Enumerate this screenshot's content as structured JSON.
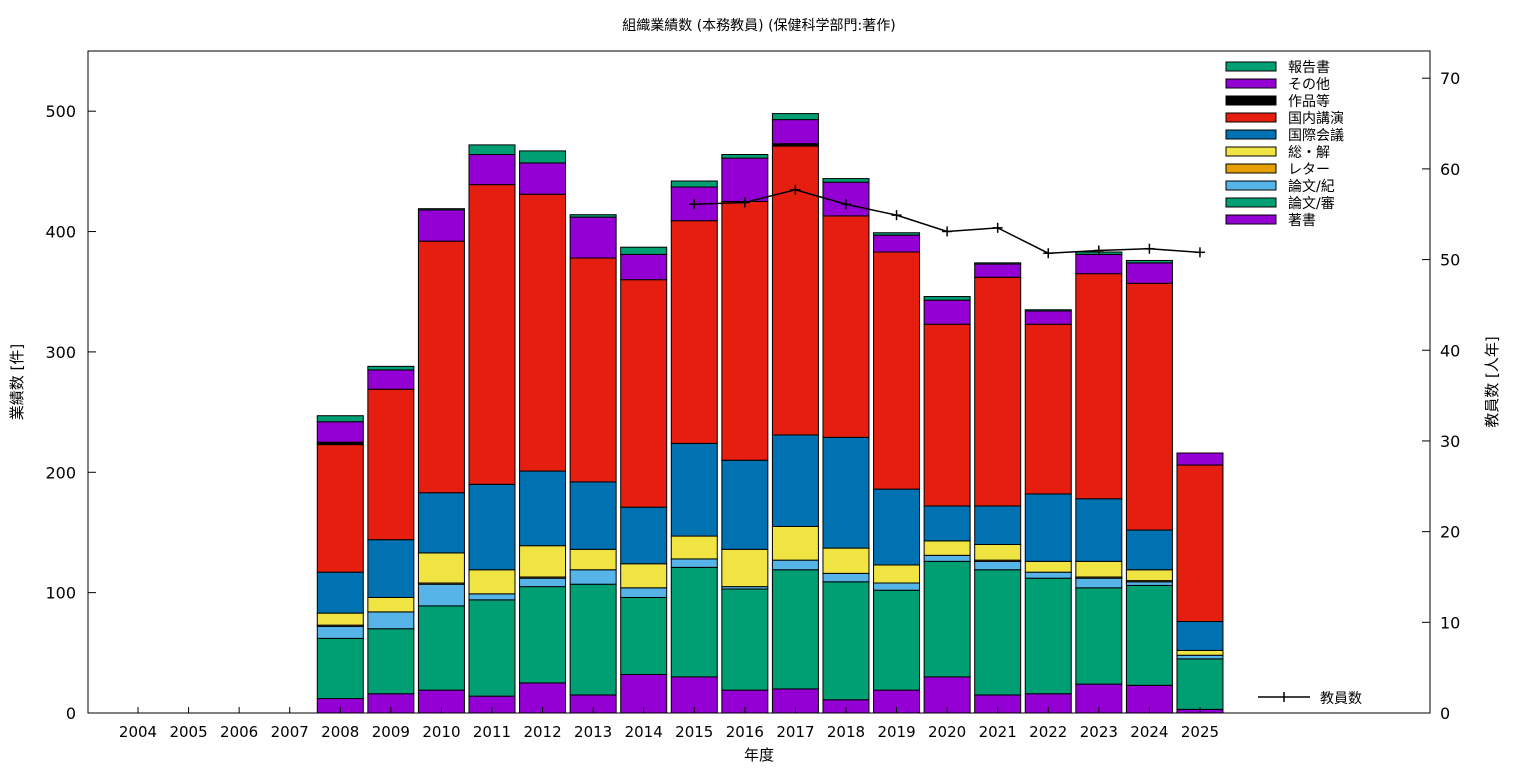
{
  "chart_data": {
    "type": "bar",
    "stacked": true,
    "title": "組織業績数 (本務教員) (保健科学部門:著作)",
    "xlabel": "年度",
    "ylabel": "業績数 [件]",
    "y2label": "教員数 [人年]",
    "ylim": [
      0,
      550
    ],
    "y2lim": [
      0,
      73
    ],
    "yticks": [
      0,
      100,
      200,
      300,
      400,
      500
    ],
    "y2ticks": [
      0,
      10,
      20,
      30,
      40,
      50,
      60,
      70
    ],
    "categories": [
      "2004",
      "2005",
      "2006",
      "2007",
      "2008",
      "2009",
      "2010",
      "2011",
      "2012",
      "2013",
      "2014",
      "2015",
      "2016",
      "2017",
      "2018",
      "2019",
      "2020",
      "2021",
      "2022",
      "2023",
      "2024",
      "2025"
    ],
    "legend_position": "top-right",
    "series": [
      {
        "name": "著書",
        "color": "#9400d3",
        "values": [
          0,
          0,
          0,
          0,
          12,
          16,
          19,
          14,
          25,
          15,
          32,
          30,
          19,
          20,
          11,
          19,
          30,
          15,
          16,
          24,
          23,
          3
        ]
      },
      {
        "name": "論文/審",
        "color": "#009e73",
        "values": [
          0,
          0,
          0,
          0,
          50,
          54,
          70,
          80,
          80,
          92,
          64,
          91,
          84,
          99,
          98,
          83,
          96,
          104,
          96,
          80,
          83,
          42
        ]
      },
      {
        "name": "論文/紀",
        "color": "#56b4e9",
        "values": [
          0,
          0,
          0,
          0,
          10,
          14,
          18,
          5,
          7,
          12,
          8,
          7,
          2,
          8,
          7,
          6,
          5,
          7,
          5,
          8,
          3,
          3
        ]
      },
      {
        "name": "レター",
        "color": "#e69f00",
        "values": [
          0,
          0,
          0,
          0,
          1,
          0,
          1,
          0,
          1,
          0,
          0,
          0,
          0,
          0,
          0,
          0,
          0,
          1,
          0,
          1,
          1,
          0
        ]
      },
      {
        "name": "総・解",
        "color": "#f0e442",
        "values": [
          0,
          0,
          0,
          0,
          10,
          12,
          25,
          20,
          26,
          17,
          20,
          19,
          31,
          28,
          21,
          15,
          12,
          13,
          9,
          13,
          9,
          4
        ]
      },
      {
        "name": "国際会議",
        "color": "#0072b2",
        "values": [
          0,
          0,
          0,
          0,
          34,
          48,
          50,
          71,
          62,
          56,
          47,
          77,
          74,
          76,
          92,
          63,
          29,
          32,
          56,
          52,
          33,
          24
        ]
      },
      {
        "name": "国内講演",
        "color": "#e51e10",
        "values": [
          0,
          0,
          0,
          0,
          106,
          125,
          209,
          249,
          230,
          186,
          189,
          185,
          215,
          240,
          184,
          197,
          151,
          190,
          141,
          187,
          205,
          130
        ]
      },
      {
        "name": "作品等",
        "color": "#000000",
        "values": [
          0,
          0,
          0,
          0,
          2,
          0,
          0,
          0,
          0,
          0,
          0,
          0,
          0,
          2,
          0,
          0,
          0,
          0,
          0,
          0,
          0,
          0
        ]
      },
      {
        "name": "その他",
        "color": "#9400d3",
        "values": [
          0,
          0,
          0,
          0,
          17,
          16,
          26,
          25,
          26,
          34,
          21,
          28,
          36,
          20,
          28,
          14,
          20,
          11,
          11,
          16,
          17,
          10
        ]
      },
      {
        "name": "報告書",
        "color": "#009e73",
        "values": [
          0,
          0,
          0,
          0,
          5,
          3,
          1,
          8,
          10,
          2,
          6,
          5,
          3,
          5,
          3,
          2,
          3,
          1,
          1,
          2,
          2,
          0
        ]
      }
    ],
    "line_series": {
      "name": "教員数",
      "axis": "y2",
      "color": "#000000",
      "categories": [
        "2015",
        "2016",
        "2017",
        "2018",
        "2019",
        "2020",
        "2021",
        "2022",
        "2023",
        "2024",
        "2025"
      ],
      "values": [
        56.1,
        56.3,
        57.7,
        56.1,
        54.9,
        53.1,
        53.5,
        50.7,
        51.0,
        51.2,
        50.8
      ]
    }
  }
}
